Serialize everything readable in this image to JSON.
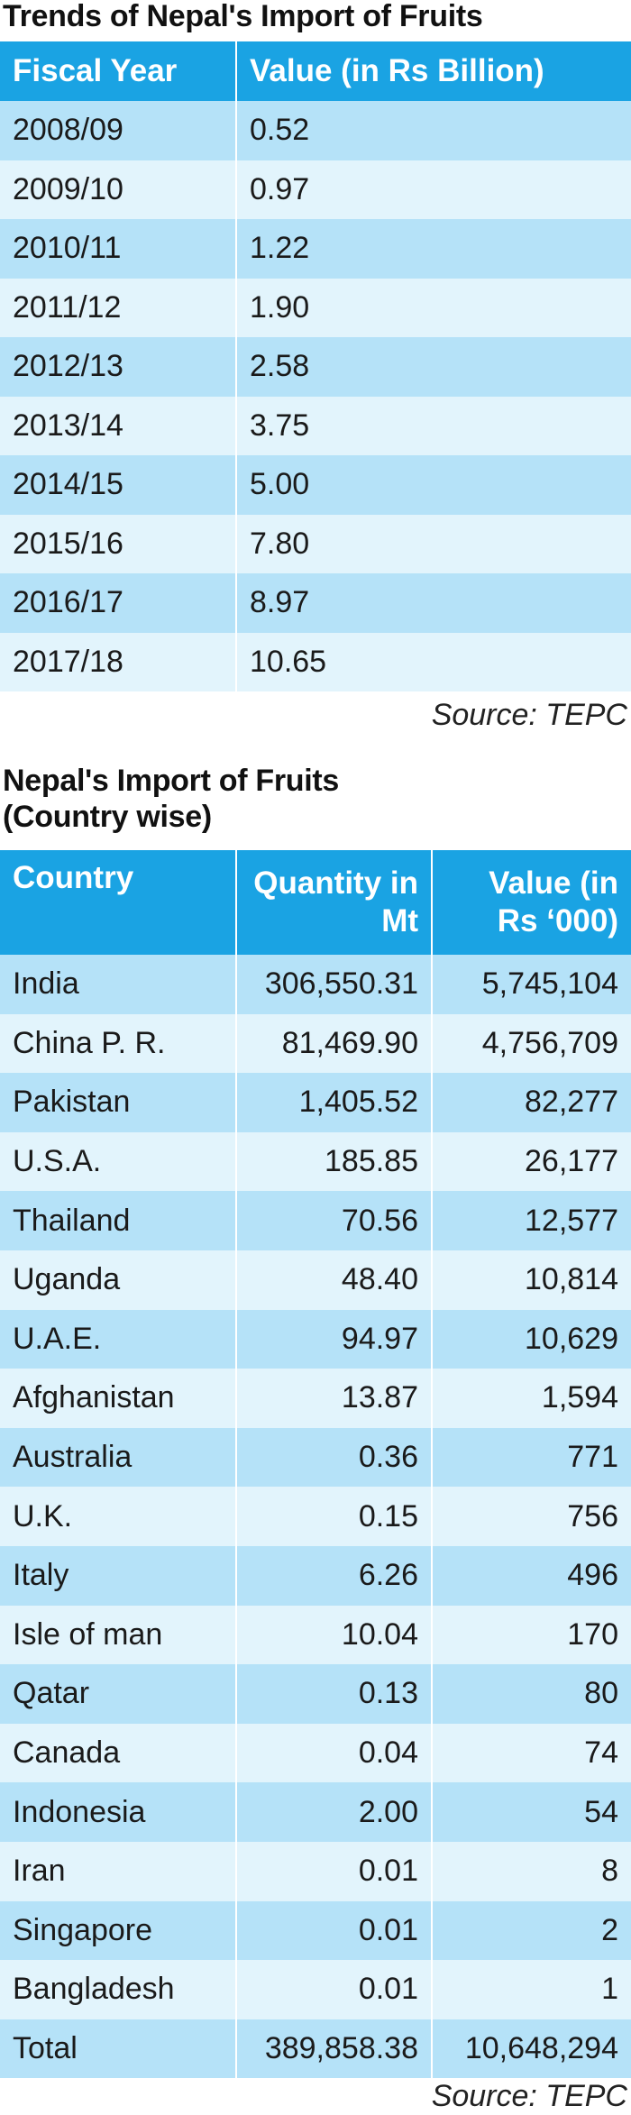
{
  "trends": {
    "title": "Trends of Nepal's Import of Fruits",
    "headers": [
      "Fiscal Year",
      "Value (in Rs Billion)"
    ],
    "rows": [
      [
        "2008/09",
        "0.52"
      ],
      [
        "2009/10",
        "0.97"
      ],
      [
        "2010/11",
        "1.22"
      ],
      [
        "2011/12",
        "1.90"
      ],
      [
        "2012/13",
        "2.58"
      ],
      [
        "2013/14",
        "3.75"
      ],
      [
        "2014/15",
        "5.00"
      ],
      [
        "2015/16",
        "7.80"
      ],
      [
        "2016/17",
        "8.97"
      ],
      [
        "2017/18",
        "10.65"
      ]
    ],
    "source": "Source: TEPC"
  },
  "countrywise": {
    "title_line1": "Nepal's Import of Fruits",
    "title_line2": "(Country wise)",
    "headers": [
      "Country",
      "Quantity in Mt",
      "Value (in Rs ‘000)"
    ],
    "rows": [
      [
        "India",
        "306,550.31",
        "5,745,104"
      ],
      [
        "China P. R.",
        "81,469.90",
        "4,756,709"
      ],
      [
        "Pakistan",
        "1,405.52",
        "82,277"
      ],
      [
        "U.S.A.",
        "185.85",
        "26,177"
      ],
      [
        "Thailand",
        "70.56",
        "12,577"
      ],
      [
        "Uganda",
        "48.40",
        "10,814"
      ],
      [
        "U.A.E.",
        "94.97",
        "10,629"
      ],
      [
        "Afghanistan",
        "13.87",
        "1,594"
      ],
      [
        "Australia",
        "0.36",
        "771"
      ],
      [
        "U.K.",
        "0.15",
        "756"
      ],
      [
        "Italy",
        "6.26",
        "496"
      ],
      [
        "Isle of man",
        "10.04",
        "170"
      ],
      [
        "Qatar",
        "0.13",
        "80"
      ],
      [
        "Canada",
        "0.04",
        "74"
      ],
      [
        "Indonesia",
        "2.00",
        "54"
      ],
      [
        "Iran",
        "0.01",
        "8"
      ],
      [
        "Singapore",
        "0.01",
        "2"
      ],
      [
        "Bangladesh",
        "0.01",
        "1"
      ],
      [
        "Total",
        "389,858.38",
        "10,648,294"
      ]
    ],
    "source": "Source: TEPC"
  },
  "colors": {
    "header_bg": "#1aa3e3",
    "row_dark": "#b5e2f8",
    "row_light": "#e2f4fc"
  }
}
